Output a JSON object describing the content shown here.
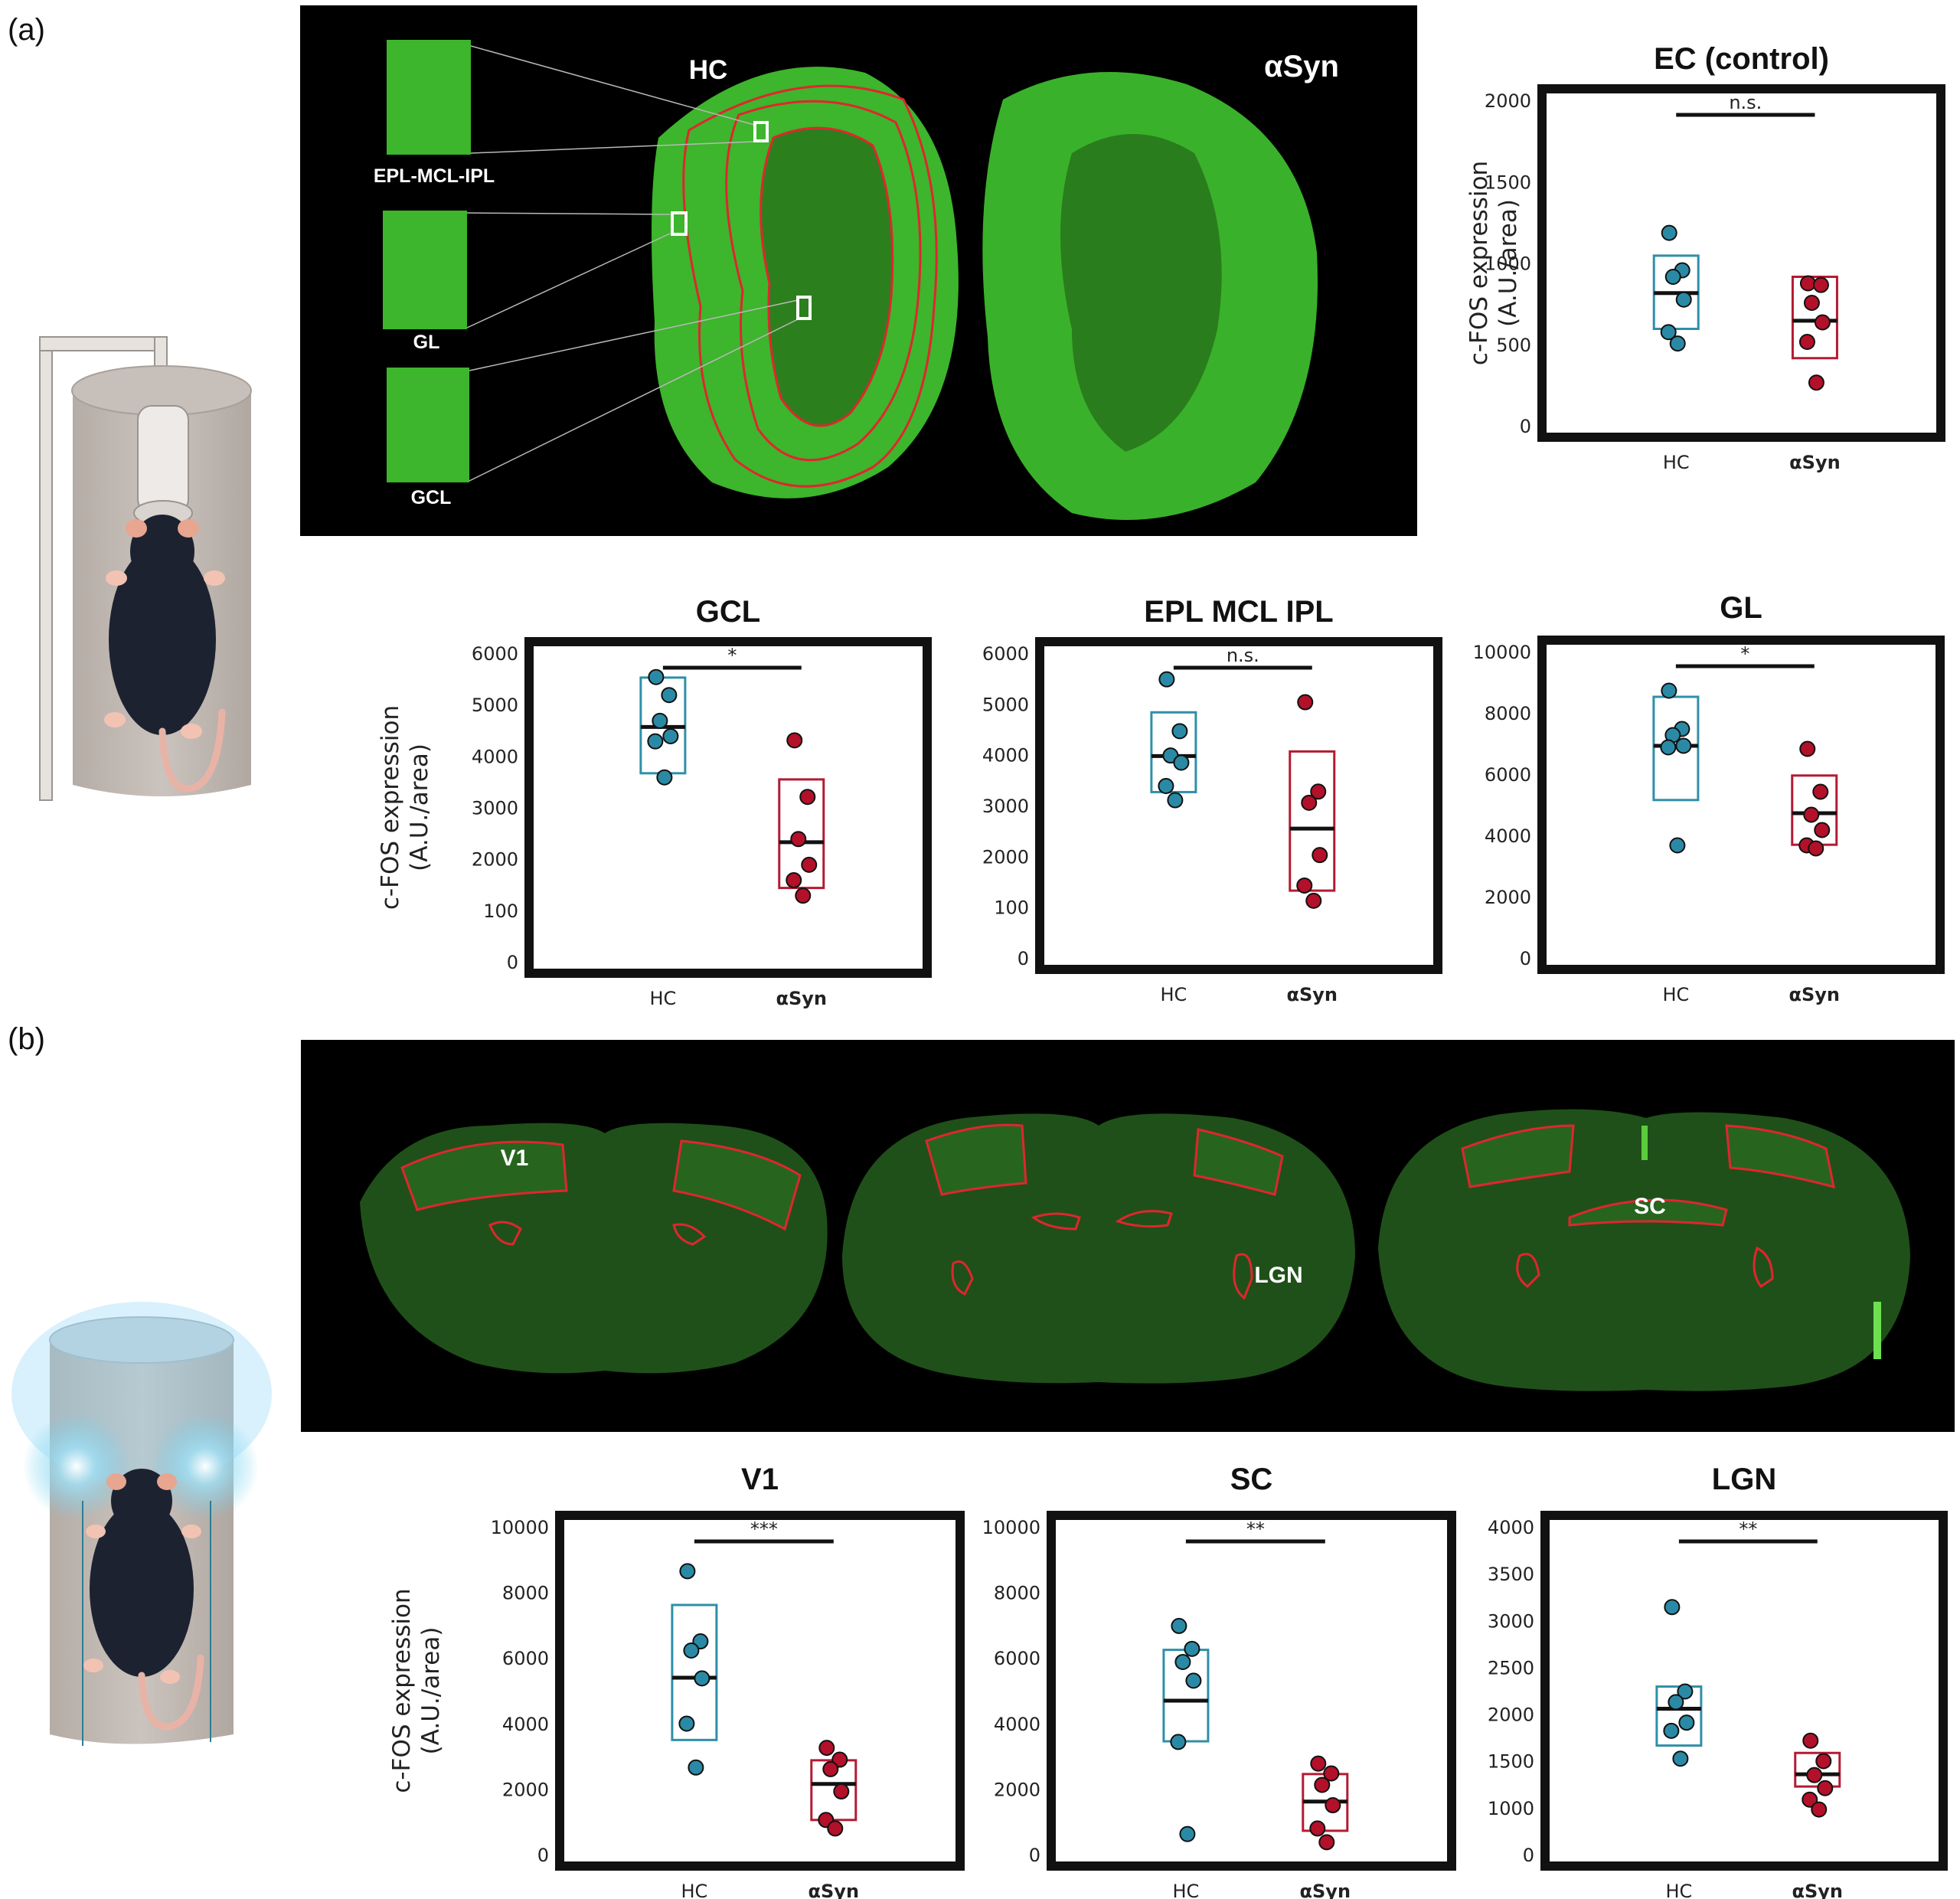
{
  "panels": [
    {
      "label": "(a)"
    },
    {
      "label": "(b)"
    }
  ],
  "micrograph_a": {
    "group_left": "HC",
    "group_right": "αSyn",
    "insets": [
      "EPL-MCL-IPL",
      "GL",
      "GCL"
    ]
  },
  "micrograph_b": {
    "regions": [
      "V1",
      "LGN",
      "SC"
    ]
  },
  "y_axis_label": [
    "c-FOS expression",
    "(A.U./area)"
  ],
  "colors": {
    "hc": "#2a8aa5",
    "hc_box": "#2f8fa8",
    "asyn": "#b3102a",
    "asyn_box": "#b31b32",
    "frame": "#111111",
    "tissue": "#3fae2f"
  },
  "chart_data": [
    {
      "type": "scatter",
      "title": "EC (control)",
      "categories": [
        "HC",
        "αSyn"
      ],
      "yticks": [
        "0",
        "500",
        "1000",
        "1500",
        "2000"
      ],
      "ylim": [
        0,
        2000
      ],
      "significance": "n.s.",
      "series": [
        {
          "group": "HC",
          "values": [
            1190,
            960,
            920,
            780,
            580,
            510
          ],
          "mean": 820,
          "box": [
            600,
            1050
          ]
        },
        {
          "group": "αSyn",
          "values": [
            880,
            870,
            760,
            640,
            520,
            270
          ],
          "mean": 650,
          "box": [
            420,
            920
          ]
        }
      ]
    },
    {
      "type": "scatter",
      "title": "GCL",
      "categories": [
        "HC",
        "αSyn"
      ],
      "yticks": [
        "0",
        "100",
        "2000",
        "3000",
        "4000",
        "5000",
        "6000"
      ],
      "ylim": [
        0,
        6000
      ],
      "significance": "*",
      "series": [
        {
          "group": "HC",
          "values": [
            5550,
            5200,
            4700,
            4400,
            4300,
            3600
          ],
          "mean": 4580,
          "box": [
            3680,
            5540
          ]
        },
        {
          "group": "αSyn",
          "values": [
            4320,
            3220,
            2400,
            1900,
            1600,
            1300
          ],
          "mean": 2340,
          "box": [
            1450,
            3560
          ]
        }
      ]
    },
    {
      "type": "scatter",
      "title": "EPL MCL IPL",
      "categories": [
        "HC",
        "αSyn"
      ],
      "yticks": [
        "0",
        "100",
        "2000",
        "3000",
        "4000",
        "5000",
        "6000"
      ],
      "ylim": [
        0,
        6000
      ],
      "significance": "n.s.",
      "series": [
        {
          "group": "HC",
          "values": [
            5500,
            4480,
            4000,
            3860,
            3400,
            3120
          ],
          "mean": 3990,
          "box": [
            3280,
            4850
          ]
        },
        {
          "group": "αSyn",
          "values": [
            5050,
            3290,
            3070,
            2040,
            1440,
            1140
          ],
          "mean": 2560,
          "box": [
            1340,
            4080
          ]
        }
      ]
    },
    {
      "type": "scatter",
      "title": "GL",
      "categories": [
        "HC",
        "αSyn"
      ],
      "yticks": [
        "0",
        "2000",
        "4000",
        "6000",
        "8000",
        "10000"
      ],
      "ylim": [
        0,
        10000
      ],
      "significance": "*",
      "series": [
        {
          "group": "HC",
          "values": [
            8750,
            7500,
            7300,
            6950,
            6900,
            3700
          ],
          "mean": 6950,
          "box": [
            5180,
            8550
          ]
        },
        {
          "group": "αSyn",
          "values": [
            6850,
            5450,
            4700,
            4200,
            3700,
            3600
          ],
          "mean": 4750,
          "box": [
            3720,
            5980
          ]
        }
      ]
    },
    {
      "type": "scatter",
      "title": "V1",
      "categories": [
        "HC",
        "αSyn"
      ],
      "yticks": [
        "0",
        "2000",
        "4000",
        "6000",
        "8000",
        "10000"
      ],
      "ylim": [
        0,
        10000
      ],
      "significance": "***",
      "series": [
        {
          "group": "HC",
          "values": [
            8670,
            6530,
            6250,
            5400,
            4020,
            2680
          ],
          "mean": 5420,
          "box": [
            3520,
            7640
          ]
        },
        {
          "group": "αSyn",
          "values": [
            3280,
            2920,
            2630,
            1950,
            1080,
            820
          ],
          "mean": 2180,
          "box": [
            1080,
            2900
          ]
        }
      ]
    },
    {
      "type": "scatter",
      "title": "SC",
      "categories": [
        "HC",
        "αSyn"
      ],
      "yticks": [
        "0",
        "2000",
        "4000",
        "6000",
        "8000",
        "10000"
      ],
      "ylim": [
        0,
        10000
      ],
      "significance": "**",
      "series": [
        {
          "group": "HC",
          "values": [
            7000,
            6300,
            5900,
            5330,
            3460,
            650
          ],
          "mean": 4720,
          "box": [
            3480,
            6270
          ]
        },
        {
          "group": "αSyn",
          "values": [
            2800,
            2500,
            2150,
            1530,
            820,
            400
          ],
          "mean": 1640,
          "box": [
            750,
            2480
          ]
        }
      ]
    },
    {
      "type": "scatter",
      "title": "LGN",
      "categories": [
        "HC",
        "αSyn"
      ],
      "yticks": [
        "0",
        "1000",
        "1500",
        "2000",
        "2500",
        "3000",
        "3500",
        "4000"
      ],
      "ylim": [
        0,
        4000
      ],
      "significance": "**",
      "series": [
        {
          "group": "HC",
          "values": [
            3030,
            2000,
            1870,
            1620,
            1520,
            1180
          ],
          "mean": 1790,
          "box": [
            1340,
            2060
          ]
        },
        {
          "group": "αSyn",
          "values": [
            1400,
            1150,
            980,
            820,
            680,
            560
          ],
          "mean": 990,
          "box": [
            840,
            1250
          ]
        }
      ]
    }
  ]
}
